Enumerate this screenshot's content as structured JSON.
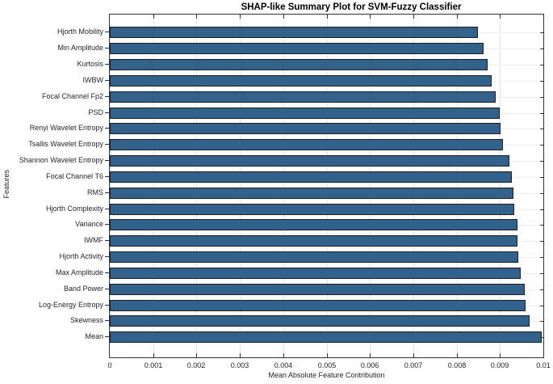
{
  "chart_data": {
    "type": "bar",
    "orientation": "horizontal",
    "title": "SHAP-like Summary Plot for SVM-Fuzzy Classifier",
    "xlabel": "Mean Absolute Feature Contribution",
    "ylabel": "Features",
    "xlim": [
      0,
      0.01
    ],
    "x_tick_labels": [
      "0",
      "0.001",
      "0.002",
      "0.003",
      "0.004",
      "0.005",
      "0.006",
      "0.007",
      "0.008",
      "0.009",
      "0.01"
    ],
    "grid": true,
    "legend": "none",
    "bar_color": "#32628c",
    "bar_edge_color": "#1f1f1f",
    "axis_color": "#333333",
    "categories": [
      "Hjorth Mobility",
      "Min Amplitude",
      "Kurtosis",
      "IWBW",
      "Focal Channel Fp2",
      "PSD",
      "Renyi Wavelet Entropy",
      "Tsallis Wavelet Entropy",
      "Shannon Wavelet Entropy",
      "Focal Channel T6",
      "RMS",
      "Hjorth Complexity",
      "Variance",
      "IWMF",
      "Hjorth Activity",
      "Max Amplitude",
      "Band Power",
      "Log-Energy Entropy",
      "Skewness",
      "Mean"
    ],
    "values": [
      0.0085,
      0.00862,
      0.00872,
      0.00881,
      0.0089,
      0.009,
      0.00902,
      0.00907,
      0.00922,
      0.00928,
      0.00931,
      0.00933,
      0.0094,
      0.00941,
      0.00942,
      0.00947,
      0.00958,
      0.00959,
      0.00968,
      0.00996
    ]
  }
}
